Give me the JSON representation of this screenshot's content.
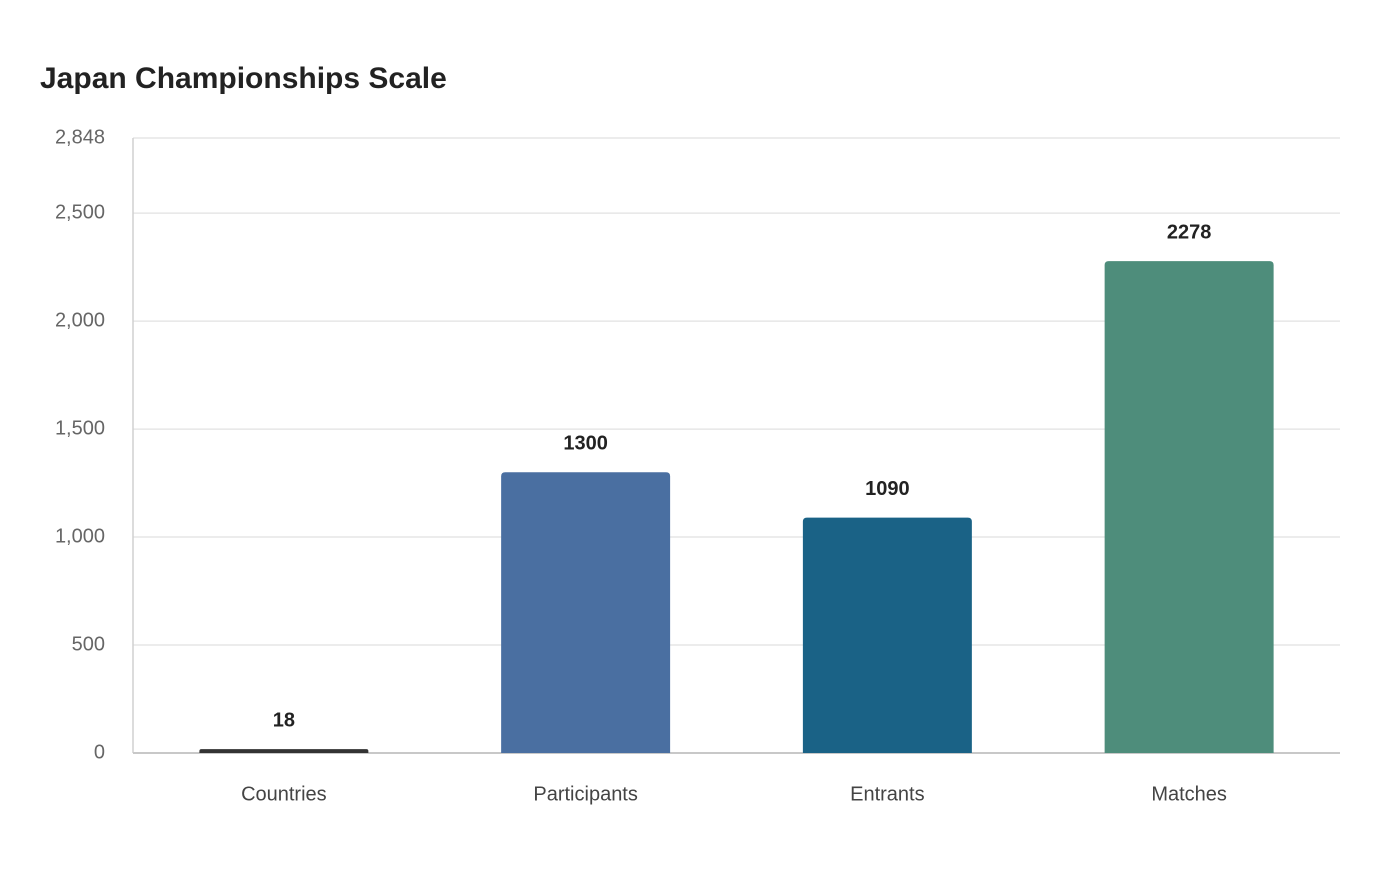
{
  "chart_data": {
    "type": "bar",
    "title": "Japan Championships Scale",
    "categories": [
      "Countries",
      "Participants",
      "Entrants",
      "Matches"
    ],
    "values": [
      18,
      1300,
      1090,
      2278
    ],
    "colors": [
      "#333333",
      "#4a6fa1",
      "#1a6286",
      "#4e8d7b"
    ],
    "ylim": [
      0,
      2848
    ],
    "yticks": [
      0,
      500,
      {
        "value": 1000,
        "label": "1,000"
      },
      {
        "value": 1500,
        "label": "1,500"
      },
      {
        "value": 2000,
        "label": "2,000"
      },
      {
        "value": 2500,
        "label": "2,500"
      },
      {
        "value": 2848,
        "label": "2,848"
      }
    ],
    "grid": true
  }
}
